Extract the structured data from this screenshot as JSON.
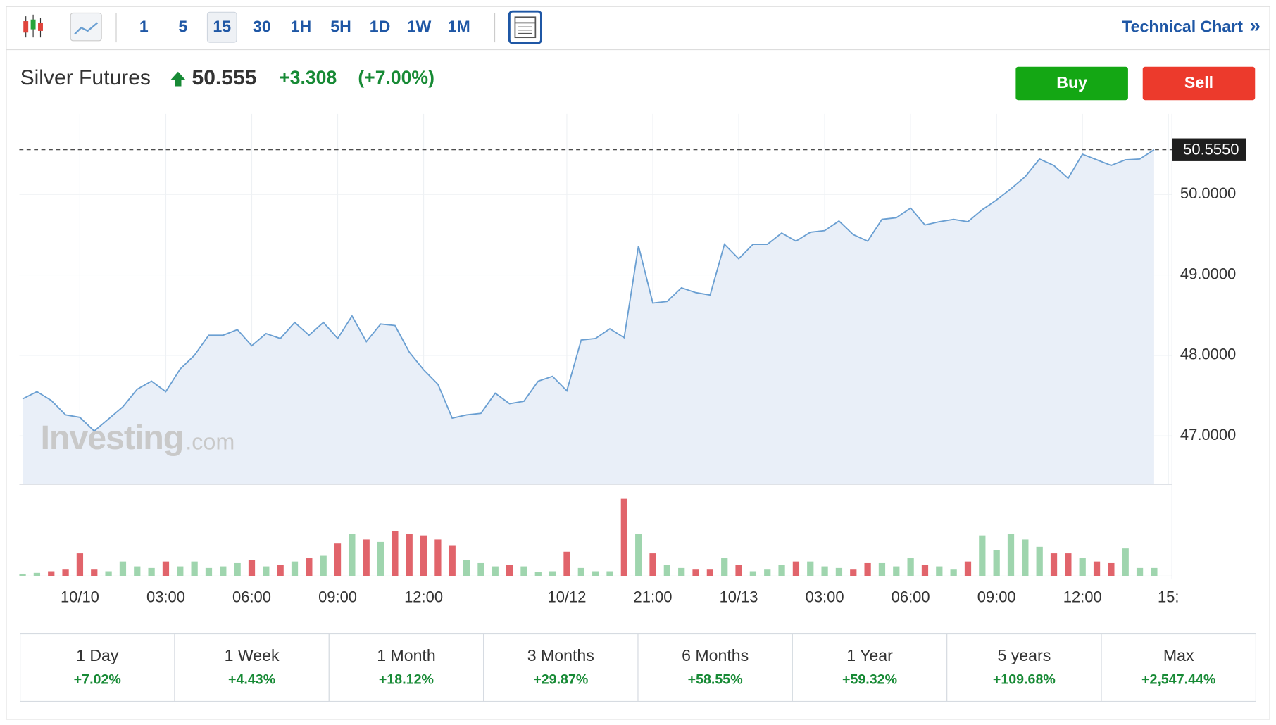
{
  "toolbar": {
    "intervals": [
      "1",
      "5",
      "15",
      "30",
      "1H",
      "5H",
      "1D",
      "1W",
      "1M"
    ],
    "selected_index": 2,
    "link": "Technical Chart",
    "link_arrow": "»"
  },
  "header": {
    "name": "Silver Futures",
    "price": "50.555",
    "change": "+3.308",
    "change_pct": "(+7.00%)"
  },
  "buttons": [
    "Buy",
    "Sell"
  ],
  "watermark": {
    "brand": "Investing",
    "suffix": ".com"
  },
  "chart_data": {
    "type": "line",
    "categories": [
      null,
      null,
      null,
      null,
      "10/10",
      null,
      null,
      null,
      null,
      null,
      "03:00",
      null,
      null,
      null,
      null,
      null,
      "06:00",
      null,
      null,
      null,
      null,
      null,
      "09:00",
      null,
      null,
      null,
      null,
      null,
      "12:00",
      null,
      null,
      null,
      null,
      null,
      null,
      null,
      null,
      null,
      "10/12",
      null,
      null,
      null,
      null,
      null,
      "21:00",
      null,
      null,
      null,
      null,
      null,
      "10/13",
      null,
      null,
      null,
      null,
      null,
      "03:00",
      null,
      null,
      null,
      null,
      null,
      "06:00",
      null,
      null,
      null,
      null,
      null,
      "09:00",
      null,
      null,
      null,
      null,
      null,
      "12:00",
      null,
      null,
      null,
      null,
      null,
      "15:"
    ],
    "values": [
      47.46,
      47.55,
      47.44,
      47.26,
      47.23,
      47.06,
      47.21,
      47.36,
      47.58,
      47.68,
      47.55,
      47.83,
      48.0,
      48.25,
      48.25,
      48.32,
      48.12,
      48.27,
      48.21,
      48.41,
      48.25,
      48.41,
      48.21,
      48.49,
      48.17,
      48.39,
      48.37,
      48.04,
      47.82,
      47.64,
      47.22,
      47.26,
      47.28,
      47.53,
      47.4,
      47.43,
      47.68,
      47.74,
      47.56,
      48.19,
      48.21,
      48.33,
      48.22,
      49.36,
      48.65,
      48.67,
      48.84,
      48.78,
      48.75,
      49.38,
      49.2,
      49.38,
      49.38,
      49.52,
      49.42,
      49.53,
      49.55,
      49.67,
      49.5,
      49.42,
      49.69,
      49.71,
      49.83,
      49.62,
      49.66,
      49.69,
      49.66,
      49.81,
      49.93,
      50.07,
      50.22,
      50.44,
      50.36,
      50.2,
      50.5,
      50.43,
      50.36,
      50.43,
      50.44,
      50.555,
      null
    ],
    "volume": [
      3,
      4,
      6,
      8,
      28,
      8,
      6,
      18,
      12,
      10,
      18,
      12,
      18,
      10,
      12,
      16,
      20,
      12,
      14,
      18,
      22,
      25,
      40,
      52,
      45,
      42,
      55,
      52,
      50,
      45,
      38,
      20,
      16,
      12,
      14,
      12,
      5,
      6,
      30,
      10,
      6,
      6,
      95,
      52,
      28,
      14,
      10,
      8,
      8,
      22,
      14,
      6,
      8,
      14,
      18,
      18,
      12,
      10,
      8,
      16,
      16,
      12,
      22,
      14,
      12,
      8,
      18,
      50,
      32,
      52,
      45,
      36,
      28,
      28,
      22,
      18,
      16,
      34,
      10,
      10,
      null
    ],
    "color": "#6a9fd2",
    "fill_color": "#e9eff8",
    "up_color": "#9fd5ae",
    "down_color": "#e1646b",
    "ylim": [
      46.4,
      51
    ],
    "yticks": [
      {
        "value": 47,
        "label": "47.0000"
      },
      {
        "value": 48,
        "label": "48.0000"
      },
      {
        "value": 49,
        "label": "49.0000"
      },
      {
        "value": 50,
        "label": "50.0000"
      }
    ],
    "last_price": {
      "value": 50.555,
      "label": "50.5550"
    },
    "grid": true
  },
  "periods": [
    {
      "label": "1 Day",
      "change": "+7.02%"
    },
    {
      "label": "1 Week",
      "change": "+4.43%"
    },
    {
      "label": "1 Month",
      "change": "+18.12%"
    },
    {
      "label": "3 Months",
      "change": "+29.87%"
    },
    {
      "label": "6 Months",
      "change": "+58.55%"
    },
    {
      "label": "1 Year",
      "change": "+59.32%"
    },
    {
      "label": "5 years",
      "change": "+109.68%"
    },
    {
      "label": "Max",
      "change": "+2,547.44%"
    }
  ]
}
